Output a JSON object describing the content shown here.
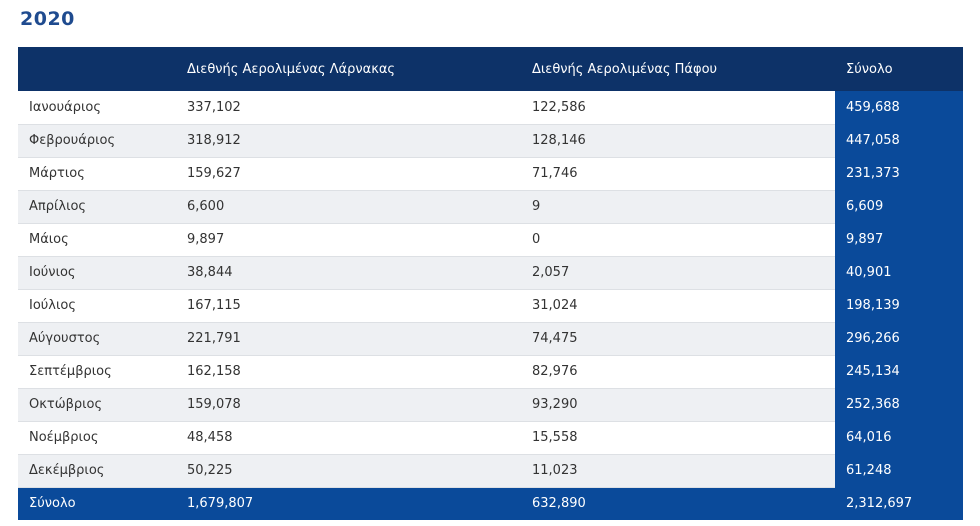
{
  "heading": "2020",
  "table": {
    "columns": [
      "",
      "Διεθνής Αερολιμένας Λάρνακας",
      "Διεθνής Αερολιμένας Πάφου",
      "Σύνολο"
    ],
    "rows": [
      {
        "month": "Ιανουάριος",
        "larnaca": "337,102",
        "paphos": "122,586",
        "total": "459,688"
      },
      {
        "month": "Φεβρουάριος",
        "larnaca": "318,912",
        "paphos": "128,146",
        "total": "447,058"
      },
      {
        "month": "Μάρτιος",
        "larnaca": "159,627",
        "paphos": "71,746",
        "total": "231,373"
      },
      {
        "month": "Απρίλιος",
        "larnaca": "6,600",
        "paphos": "9",
        "total": "6,609"
      },
      {
        "month": "Μάιος",
        "larnaca": "9,897",
        "paphos": "0",
        "total": "9,897"
      },
      {
        "month": "Ιούνιος",
        "larnaca": "38,844",
        "paphos": "2,057",
        "total": "40,901"
      },
      {
        "month": "Ιούλιος",
        "larnaca": "167,115",
        "paphos": "31,024",
        "total": "198,139"
      },
      {
        "month": "Αύγουστος",
        "larnaca": "221,791",
        "paphos": "74,475",
        "total": "296,266"
      },
      {
        "month": "Σεπτέμβριος",
        "larnaca": "162,158",
        "paphos": "82,976",
        "total": "245,134"
      },
      {
        "month": "Οκτώβριος",
        "larnaca": "159,078",
        "paphos": "93,290",
        "total": "252,368"
      },
      {
        "month": "Νοέμβριος",
        "larnaca": "48,458",
        "paphos": "15,558",
        "total": "64,016"
      },
      {
        "month": "Δεκέμβριος",
        "larnaca": "50,225",
        "paphos": "11,023",
        "total": "61,248"
      }
    ],
    "footer": {
      "month": "Σύνολο",
      "larnaca": "1,679,807",
      "paphos": "632,890",
      "total": "2,312,697"
    }
  },
  "colors": {
    "heading": "#1f4b8f",
    "header_bg": "#0d3268",
    "total_bg": "#0a4a9a",
    "stripe_bg": "#eef0f3"
  }
}
